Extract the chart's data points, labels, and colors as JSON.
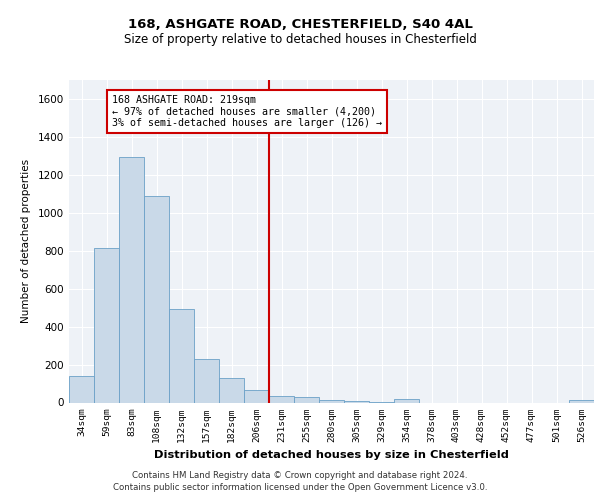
{
  "title1": "168, ASHGATE ROAD, CHESTERFIELD, S40 4AL",
  "title2": "Size of property relative to detached houses in Chesterfield",
  "xlabel": "Distribution of detached houses by size in Chesterfield",
  "ylabel": "Number of detached properties",
  "bin_labels": [
    "34sqm",
    "59sqm",
    "83sqm",
    "108sqm",
    "132sqm",
    "157sqm",
    "182sqm",
    "206sqm",
    "231sqm",
    "255sqm",
    "280sqm",
    "305sqm",
    "329sqm",
    "354sqm",
    "378sqm",
    "403sqm",
    "428sqm",
    "452sqm",
    "477sqm",
    "501sqm",
    "526sqm"
  ],
  "bar_heights": [
    140,
    815,
    1295,
    1090,
    495,
    230,
    130,
    65,
    35,
    28,
    15,
    10,
    5,
    18,
    0,
    0,
    0,
    0,
    0,
    0,
    15
  ],
  "bar_color": "#c9d9e8",
  "bar_edge_color": "#6aa0c7",
  "ylim": [
    0,
    1700
  ],
  "yticks": [
    0,
    200,
    400,
    600,
    800,
    1000,
    1200,
    1400,
    1600
  ],
  "property_line_x": 7.5,
  "annotation_line1": "168 ASHGATE ROAD: 219sqm",
  "annotation_line2": "← 97% of detached houses are smaller (4,200)",
  "annotation_line3": "3% of semi-detached houses are larger (126) →",
  "annotation_box_color": "#ffffff",
  "annotation_border_color": "#cc0000",
  "vline_color": "#cc0000",
  "footer1": "Contains HM Land Registry data © Crown copyright and database right 2024.",
  "footer2": "Contains public sector information licensed under the Open Government Licence v3.0.",
  "bg_color": "#eef2f7",
  "grid_color": "#ffffff",
  "title_fontsize": 9.5,
  "subtitle_fontsize": 8.5
}
